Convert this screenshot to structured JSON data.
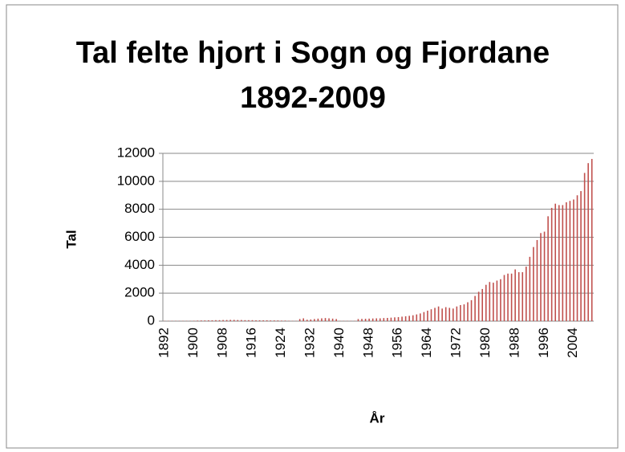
{
  "chart_data": {
    "type": "bar",
    "title": "Tal felte hjort i Sogn og Fjordane 1892-2009",
    "xlabel": "År",
    "ylabel": "Tal",
    "categories": [
      "1892",
      null,
      null,
      null,
      null,
      null,
      null,
      null,
      "1900",
      null,
      null,
      null,
      null,
      null,
      null,
      null,
      "1908",
      null,
      null,
      null,
      null,
      null,
      null,
      null,
      "1916",
      null,
      null,
      null,
      null,
      null,
      null,
      null,
      "1924",
      null,
      null,
      null,
      null,
      null,
      null,
      null,
      "1932",
      null,
      null,
      null,
      null,
      null,
      null,
      null,
      "1940",
      null,
      null,
      null,
      null,
      null,
      null,
      null,
      "1948",
      null,
      null,
      null,
      null,
      null,
      null,
      null,
      "1956",
      null,
      null,
      null,
      null,
      null,
      null,
      null,
      "1964",
      null,
      null,
      null,
      null,
      null,
      null,
      null,
      "1972",
      null,
      null,
      null,
      null,
      null,
      null,
      null,
      "1980",
      null,
      null,
      null,
      null,
      null,
      null,
      null,
      "1988",
      null,
      null,
      null,
      null,
      null,
      null,
      null,
      "1996",
      null,
      null,
      null,
      null,
      null,
      null,
      null,
      "2004",
      null,
      null,
      null,
      null,
      null
    ],
    "values": [
      20,
      20,
      20,
      20,
      20,
      20,
      20,
      20,
      30,
      40,
      50,
      50,
      60,
      60,
      70,
      70,
      80,
      80,
      90,
      90,
      80,
      80,
      70,
      70,
      70,
      60,
      60,
      60,
      60,
      50,
      50,
      50,
      40,
      40,
      30,
      20,
      20,
      150,
      200,
      100,
      120,
      150,
      180,
      200,
      220,
      200,
      180,
      150,
      20,
      20,
      20,
      20,
      20,
      150,
      160,
      170,
      180,
      190,
      200,
      200,
      220,
      230,
      250,
      270,
      290,
      320,
      350,
      380,
      420,
      480,
      550,
      650,
      750,
      850,
      950,
      1050,
      900,
      1000,
      950,
      900,
      1050,
      1150,
      1200,
      1350,
      1500,
      1800,
      2100,
      2300,
      2600,
      2800,
      2750,
      2900,
      3000,
      3300,
      3400,
      3400,
      3700,
      3500,
      3500,
      3900,
      4600,
      5300,
      5800,
      6300,
      6400,
      7500,
      8100,
      8400,
      8300,
      8300,
      8500,
      8600,
      8700,
      9000,
      9300,
      10600,
      11300,
      11600
    ],
    "color": "#c0504d",
    "ylim": [
      0,
      12000
    ],
    "yticks": [
      0,
      2000,
      4000,
      6000,
      8000,
      10000,
      12000
    ],
    "grid": true
  }
}
